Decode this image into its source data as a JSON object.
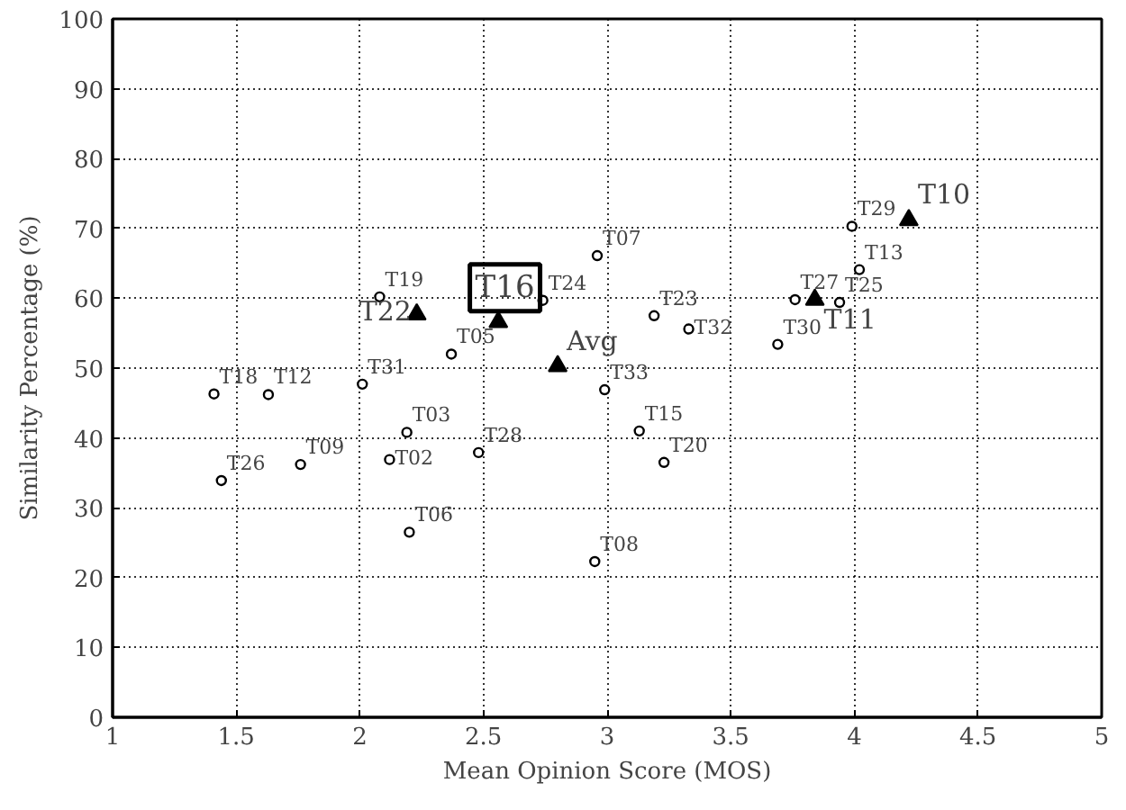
{
  "chart_data": {
    "type": "scatter",
    "xlabel": "Mean Opinion Score (MOS)",
    "ylabel": "Similarity Percentage (%)",
    "xlim": [
      1,
      5
    ],
    "ylim": [
      0,
      100
    ],
    "xticks": [
      1,
      1.5,
      2,
      2.5,
      3,
      3.5,
      4,
      4.5,
      5
    ],
    "yticks": [
      0,
      10,
      20,
      30,
      40,
      50,
      60,
      70,
      80,
      90,
      100
    ],
    "grid": true,
    "series": [
      {
        "color": "#000000",
        "marker": "circle",
        "x": [
          2.08,
          2.74,
          2.37,
          1.41,
          1.63,
          2.01,
          2.19,
          2.12,
          2.48,
          1.44,
          1.76,
          2.2,
          2.96,
          3.99,
          4.02,
          3.76,
          3.94,
          3.19,
          3.33,
          3.69,
          2.99,
          3.13,
          3.23,
          2.95
        ],
        "values": [
          60.2,
          59.7,
          52.0,
          46.3,
          46.2,
          47.7,
          40.8,
          36.9,
          37.9,
          33.9,
          36.2,
          26.5,
          66.1,
          70.3,
          64.1,
          59.8,
          59.4,
          57.5,
          55.6,
          53.4,
          46.9,
          41.0,
          36.5,
          22.3
        ],
        "value_labels": [
          "T19",
          "T24",
          "T05",
          "T18",
          "T12",
          "T31",
          "T03",
          "T02",
          "T28",
          "T26",
          "T09",
          "T06",
          "T07",
          "T29",
          "T13",
          "T27",
          "T25",
          "T23",
          "T32",
          "T30",
          "T33",
          "T15",
          "T20",
          "T08"
        ]
      },
      {
        "color": "#000000",
        "marker": "triangle",
        "x": [
          2.23,
          2.56,
          2.8,
          3.84,
          4.22
        ],
        "values": [
          57.7,
          56.6,
          50.3,
          59.8,
          71.2
        ],
        "value_labels": [
          "T22",
          null,
          "Avg",
          "T11",
          "T10"
        ]
      }
    ],
    "annotations": [
      {
        "text": "T16",
        "x": 2.56,
        "y": 56.6
      }
    ]
  }
}
